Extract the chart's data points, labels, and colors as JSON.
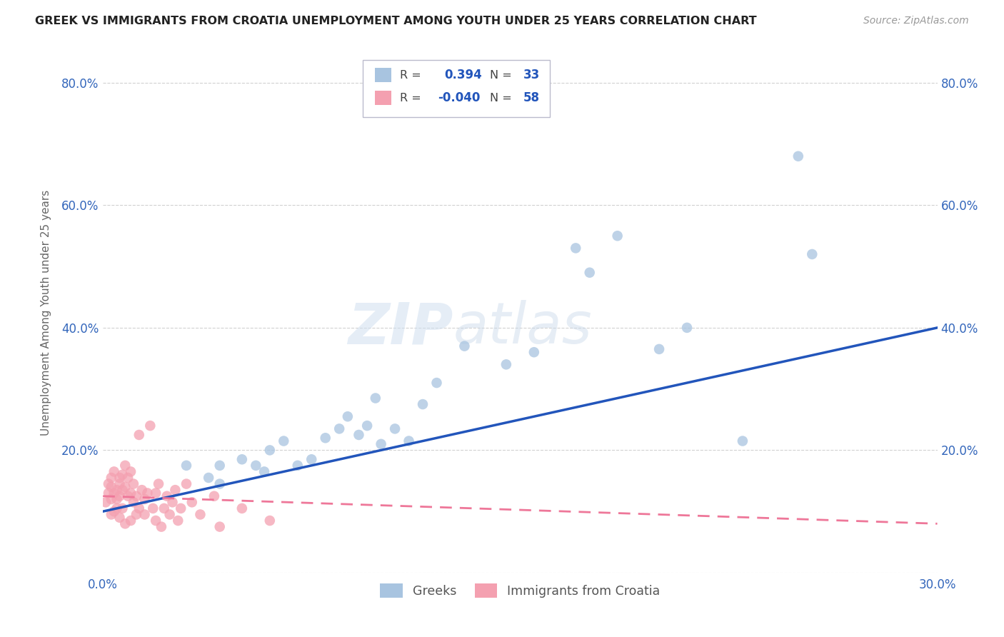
{
  "title": "GREEK VS IMMIGRANTS FROM CROATIA UNEMPLOYMENT AMONG YOUTH UNDER 25 YEARS CORRELATION CHART",
  "source": "Source: ZipAtlas.com",
  "ylabel": "Unemployment Among Youth under 25 years",
  "watermark": "ZIPatlas",
  "xlim": [
    0.0,
    0.3
  ],
  "ylim": [
    0.0,
    0.85
  ],
  "blue_color": "#A8C4E0",
  "pink_color": "#F4A0B0",
  "line_blue": "#2255BB",
  "line_pink": "#EE7799",
  "blue_line_x": [
    0.0,
    0.3
  ],
  "blue_line_y": [
    0.1,
    0.4
  ],
  "pink_line_x": [
    0.0,
    0.3
  ],
  "pink_line_y": [
    0.125,
    0.08
  ],
  "greeks_x": [
    0.03,
    0.038,
    0.042,
    0.042,
    0.05,
    0.055,
    0.058,
    0.06,
    0.065,
    0.07,
    0.075,
    0.08,
    0.085,
    0.088,
    0.092,
    0.095,
    0.098,
    0.1,
    0.105,
    0.11,
    0.115,
    0.12,
    0.13,
    0.145,
    0.155,
    0.17,
    0.175,
    0.185,
    0.2,
    0.21,
    0.23,
    0.25,
    0.255
  ],
  "greeks_y": [
    0.175,
    0.155,
    0.145,
    0.175,
    0.185,
    0.175,
    0.165,
    0.2,
    0.215,
    0.175,
    0.185,
    0.22,
    0.235,
    0.255,
    0.225,
    0.24,
    0.285,
    0.21,
    0.235,
    0.215,
    0.275,
    0.31,
    0.37,
    0.34,
    0.36,
    0.53,
    0.49,
    0.55,
    0.365,
    0.4,
    0.215,
    0.68,
    0.52
  ],
  "croatia_x": [
    0.001,
    0.002,
    0.002,
    0.003,
    0.003,
    0.003,
    0.003,
    0.004,
    0.004,
    0.004,
    0.005,
    0.005,
    0.005,
    0.006,
    0.006,
    0.006,
    0.006,
    0.007,
    0.007,
    0.007,
    0.008,
    0.008,
    0.008,
    0.009,
    0.009,
    0.01,
    0.01,
    0.01,
    0.011,
    0.011,
    0.012,
    0.012,
    0.013,
    0.013,
    0.014,
    0.015,
    0.015,
    0.016,
    0.017,
    0.018,
    0.019,
    0.019,
    0.02,
    0.021,
    0.022,
    0.023,
    0.024,
    0.025,
    0.026,
    0.027,
    0.028,
    0.03,
    0.032,
    0.035,
    0.04,
    0.042,
    0.05,
    0.06
  ],
  "croatia_y": [
    0.115,
    0.13,
    0.145,
    0.095,
    0.12,
    0.14,
    0.155,
    0.1,
    0.13,
    0.165,
    0.12,
    0.135,
    0.105,
    0.145,
    0.125,
    0.09,
    0.155,
    0.16,
    0.105,
    0.135,
    0.14,
    0.175,
    0.08,
    0.125,
    0.155,
    0.13,
    0.085,
    0.165,
    0.115,
    0.145,
    0.095,
    0.125,
    0.225,
    0.105,
    0.135,
    0.12,
    0.095,
    0.13,
    0.24,
    0.105,
    0.13,
    0.085,
    0.145,
    0.075,
    0.105,
    0.125,
    0.095,
    0.115,
    0.135,
    0.085,
    0.105,
    0.145,
    0.115,
    0.095,
    0.125,
    0.075,
    0.105,
    0.085
  ]
}
